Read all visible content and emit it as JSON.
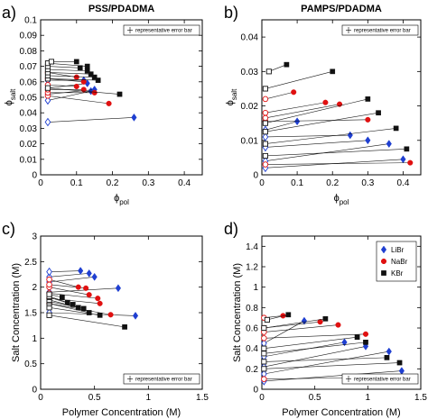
{
  "colors": {
    "LiBr": "#1f3fd1",
    "NaBr": "#e01010",
    "KBr": "#111111",
    "axis": "#000000",
    "tie_line": "#000000"
  },
  "figure": {
    "error_bar_note": "representative error bar",
    "legend_items": [
      "LiBr",
      "NaBr",
      "KBr"
    ]
  },
  "chart_data": [
    {
      "id": "a",
      "type": "scatter",
      "panel_label": "a)",
      "title": "PSS/PDADMA",
      "xlabel": "ϕ",
      "xlabel_sub": "pol",
      "ylabel": "ϕ",
      "ylabel_sub": "salt",
      "xlim": [
        0,
        0.45
      ],
      "ylim": [
        0,
        0.1
      ],
      "xticks": [
        0,
        0.1,
        0.2,
        0.3,
        0.4
      ],
      "xtick_labels": [
        "0",
        "0.1",
        "0.2",
        "0.3",
        "0.4"
      ],
      "yticks": [
        0,
        0.01,
        0.02,
        0.03,
        0.04,
        0.05,
        0.06,
        0.07,
        0.08,
        0.09,
        0.1
      ],
      "ytick_labels": [
        "0",
        "0.01",
        "0.02",
        "0.03",
        "0.04",
        "0.05",
        "0.06",
        "0.07",
        "0.08",
        "0.09",
        "0.1"
      ],
      "grid": false,
      "legend": "none",
      "error_bar_box": "top-right",
      "tie_lines": [
        {
          "salt": "LiBr",
          "x": [
            0.02,
            0.26
          ],
          "y": [
            0.034,
            0.037
          ]
        },
        {
          "salt": "LiBr",
          "x": [
            0.02,
            0.14
          ],
          "y": [
            0.048,
            0.054
          ]
        },
        {
          "salt": "LiBr",
          "x": [
            0.02,
            0.15
          ],
          "y": [
            0.052,
            0.055
          ]
        },
        {
          "salt": "LiBr",
          "x": [
            0.02,
            0.13
          ],
          "y": [
            0.056,
            0.059
          ]
        },
        {
          "salt": "LiBr",
          "x": [
            0.02,
            0.12
          ],
          "y": [
            0.061,
            0.061
          ]
        },
        {
          "salt": "NaBr",
          "x": [
            0.02,
            0.19
          ],
          "y": [
            0.051,
            0.046
          ]
        },
        {
          "salt": "NaBr",
          "x": [
            0.02,
            0.15
          ],
          "y": [
            0.053,
            0.053
          ]
        },
        {
          "salt": "NaBr",
          "x": [
            0.02,
            0.12
          ],
          "y": [
            0.055,
            0.055
          ]
        },
        {
          "salt": "NaBr",
          "x": [
            0.02,
            0.1
          ],
          "y": [
            0.058,
            0.057
          ]
        },
        {
          "salt": "NaBr",
          "x": [
            0.02,
            0.12
          ],
          "y": [
            0.062,
            0.06
          ]
        },
        {
          "salt": "NaBr",
          "x": [
            0.02,
            0.1
          ],
          "y": [
            0.066,
            0.063
          ]
        },
        {
          "salt": "KBr",
          "x": [
            0.02,
            0.22
          ],
          "y": [
            0.056,
            0.052
          ]
        },
        {
          "salt": "KBr",
          "x": [
            0.02,
            0.16
          ],
          "y": [
            0.062,
            0.061
          ]
        },
        {
          "salt": "KBr",
          "x": [
            0.02,
            0.15
          ],
          "y": [
            0.064,
            0.063
          ]
        },
        {
          "salt": "KBr",
          "x": [
            0.02,
            0.14
          ],
          "y": [
            0.066,
            0.065
          ]
        },
        {
          "salt": "KBr",
          "x": [
            0.02,
            0.13
          ],
          "y": [
            0.068,
            0.067
          ]
        },
        {
          "salt": "KBr",
          "x": [
            0.02,
            0.11
          ],
          "y": [
            0.07,
            0.069
          ]
        },
        {
          "salt": "KBr",
          "x": [
            0.02,
            0.13
          ],
          "y": [
            0.072,
            0.07
          ]
        },
        {
          "salt": "KBr",
          "x": [
            0.03,
            0.1
          ],
          "y": [
            0.073,
            0.073
          ]
        }
      ]
    },
    {
      "id": "b",
      "type": "scatter",
      "panel_label": "b)",
      "title": "PAMPS/PDADMA",
      "xlabel": "ϕ",
      "xlabel_sub": "pol",
      "ylabel": "ϕ",
      "ylabel_sub": "salt",
      "xlim": [
        0,
        0.45
      ],
      "ylim": [
        0,
        0.045
      ],
      "xticks": [
        0,
        0.1,
        0.2,
        0.3,
        0.4
      ],
      "xtick_labels": [
        "0",
        "0.1",
        "0.2",
        "0.3",
        "0.4"
      ],
      "yticks": [
        0,
        0.01,
        0.02,
        0.03,
        0.04
      ],
      "ytick_labels": [
        "0",
        "0.01",
        "0.02",
        "0.03",
        "0.04"
      ],
      "grid": false,
      "legend": "none",
      "error_bar_box": "top-right",
      "tie_lines": [
        {
          "salt": "LiBr",
          "x": [
            0.01,
            0.4
          ],
          "y": [
            0.002,
            0.0045
          ]
        },
        {
          "salt": "LiBr",
          "x": [
            0.01,
            0.36
          ],
          "y": [
            0.004,
            0.009
          ]
        },
        {
          "salt": "LiBr",
          "x": [
            0.01,
            0.3
          ],
          "y": [
            0.008,
            0.01
          ]
        },
        {
          "salt": "LiBr",
          "x": [
            0.01,
            0.25
          ],
          "y": [
            0.011,
            0.0115
          ]
        },
        {
          "salt": "LiBr",
          "x": [
            0.01,
            0.1
          ],
          "y": [
            0.013,
            0.0155
          ]
        },
        {
          "salt": "NaBr",
          "x": [
            0.01,
            0.42
          ],
          "y": [
            0.003,
            0.0035
          ]
        },
        {
          "salt": "NaBr",
          "x": [
            0.01,
            0.3
          ],
          "y": [
            0.0155,
            0.016
          ]
        },
        {
          "salt": "NaBr",
          "x": [
            0.01,
            0.22
          ],
          "y": [
            0.0165,
            0.0205
          ]
        },
        {
          "salt": "NaBr",
          "x": [
            0.01,
            0.18
          ],
          "y": [
            0.018,
            0.021
          ]
        },
        {
          "salt": "NaBr",
          "x": [
            0.01,
            0.09
          ],
          "y": [
            0.022,
            0.024
          ]
        },
        {
          "salt": "KBr",
          "x": [
            0.01,
            0.41
          ],
          "y": [
            0.0055,
            0.0075
          ]
        },
        {
          "salt": "KBr",
          "x": [
            0.01,
            0.38
          ],
          "y": [
            0.009,
            0.0135
          ]
        },
        {
          "salt": "KBr",
          "x": [
            0.01,
            0.33
          ],
          "y": [
            0.0125,
            0.018
          ]
        },
        {
          "salt": "KBr",
          "x": [
            0.01,
            0.3
          ],
          "y": [
            0.015,
            0.022
          ]
        },
        {
          "salt": "KBr",
          "x": [
            0.01,
            0.2
          ],
          "y": [
            0.025,
            0.03
          ]
        },
        {
          "salt": "KBr",
          "x": [
            0.02,
            0.07
          ],
          "y": [
            0.03,
            0.032
          ]
        }
      ]
    },
    {
      "id": "c",
      "type": "scatter",
      "panel_label": "c)",
      "title": "",
      "xlabel": "Polymer Concentration (M)",
      "ylabel": "Salt Concentration (M)",
      "xlim": [
        0,
        1.5
      ],
      "ylim": [
        0,
        3
      ],
      "xticks": [
        0,
        0.5,
        1,
        1.5
      ],
      "xtick_labels": [
        "0",
        "0.5",
        "1",
        "1.5"
      ],
      "yticks": [
        0,
        0.5,
        1,
        1.5,
        2,
        2.5,
        3
      ],
      "ytick_labels": [
        "0",
        "0.5",
        "1",
        "1.5",
        "2",
        "2.5",
        "3"
      ],
      "grid": false,
      "legend": "none",
      "error_bar_box": "bottom-right",
      "tie_lines": [
        {
          "salt": "LiBr",
          "x": [
            0.08,
            0.88
          ],
          "y": [
            1.5,
            1.44
          ]
        },
        {
          "salt": "LiBr",
          "x": [
            0.08,
            0.72
          ],
          "y": [
            1.9,
            1.98
          ]
        },
        {
          "salt": "LiBr",
          "x": [
            0.08,
            0.5
          ],
          "y": [
            2.1,
            2.2
          ]
        },
        {
          "salt": "LiBr",
          "x": [
            0.08,
            0.45
          ],
          "y": [
            2.2,
            2.27
          ]
        },
        {
          "salt": "LiBr",
          "x": [
            0.08,
            0.37
          ],
          "y": [
            2.3,
            2.32
          ]
        },
        {
          "salt": "NaBr",
          "x": [
            0.08,
            0.65
          ],
          "y": [
            1.68,
            1.46
          ]
        },
        {
          "salt": "NaBr",
          "x": [
            0.08,
            0.55
          ],
          "y": [
            1.78,
            1.68
          ]
        },
        {
          "salt": "NaBr",
          "x": [
            0.08,
            0.53
          ],
          "y": [
            1.88,
            1.78
          ]
        },
        {
          "salt": "NaBr",
          "x": [
            0.08,
            0.45
          ],
          "y": [
            2.0,
            1.85
          ]
        },
        {
          "salt": "NaBr",
          "x": [
            0.08,
            0.42
          ],
          "y": [
            2.05,
            1.98
          ]
        },
        {
          "salt": "NaBr",
          "x": [
            0.08,
            0.35
          ],
          "y": [
            2.15,
            2.0
          ]
        },
        {
          "salt": "KBr",
          "x": [
            0.08,
            0.78
          ],
          "y": [
            1.45,
            1.22
          ]
        },
        {
          "salt": "KBr",
          "x": [
            0.08,
            0.55
          ],
          "y": [
            1.6,
            1.45
          ]
        },
        {
          "salt": "KBr",
          "x": [
            0.08,
            0.45
          ],
          "y": [
            1.68,
            1.5
          ]
        },
        {
          "salt": "KBr",
          "x": [
            0.08,
            0.4
          ],
          "y": [
            1.72,
            1.58
          ]
        },
        {
          "salt": "KBr",
          "x": [
            0.08,
            0.35
          ],
          "y": [
            1.75,
            1.6
          ]
        },
        {
          "salt": "KBr",
          "x": [
            0.08,
            0.3
          ],
          "y": [
            1.8,
            1.66
          ]
        },
        {
          "salt": "KBr",
          "x": [
            0.08,
            0.25
          ],
          "y": [
            1.82,
            1.7
          ]
        },
        {
          "salt": "KBr",
          "x": [
            0.08,
            0.2
          ],
          "y": [
            1.86,
            1.8
          ]
        }
      ]
    },
    {
      "id": "d",
      "type": "scatter",
      "panel_label": "d)",
      "title": "",
      "xlabel": "Polymer Concentration (M)",
      "ylabel": "Salt Concentration (M)",
      "xlim": [
        0,
        1.5
      ],
      "ylim": [
        0,
        1.5
      ],
      "xticks": [
        0,
        0.5,
        1,
        1.5
      ],
      "xtick_labels": [
        "0",
        "0.5",
        "1",
        "1.5"
      ],
      "yticks": [
        0,
        0.2,
        0.4,
        0.6,
        0.8,
        1.0,
        1.2,
        1.4
      ],
      "ytick_labels": [
        "0",
        "0.2",
        "0.4",
        "0.6",
        "0.8",
        "1",
        "1.2",
        "1.4"
      ],
      "grid": false,
      "legend": "top-right",
      "error_bar_box": "bottom-right",
      "tie_lines": [
        {
          "salt": "LiBr",
          "x": [
            0.02,
            1.32
          ],
          "y": [
            0.08,
            0.18
          ]
        },
        {
          "salt": "LiBr",
          "x": [
            0.02,
            1.2
          ],
          "y": [
            0.15,
            0.37
          ]
        },
        {
          "salt": "LiBr",
          "x": [
            0.02,
            0.98
          ],
          "y": [
            0.22,
            0.42
          ]
        },
        {
          "salt": "LiBr",
          "x": [
            0.02,
            0.78
          ],
          "y": [
            0.32,
            0.46
          ]
        },
        {
          "salt": "LiBr",
          "x": [
            0.02,
            0.4
          ],
          "y": [
            0.45,
            0.67
          ]
        },
        {
          "salt": "NaBr",
          "x": [
            0.02,
            1.37
          ],
          "y": [
            0.1,
            0.12
          ]
        },
        {
          "salt": "NaBr",
          "x": [
            0.02,
            0.98
          ],
          "y": [
            0.5,
            0.54
          ]
        },
        {
          "salt": "NaBr",
          "x": [
            0.02,
            0.72
          ],
          "y": [
            0.56,
            0.63
          ]
        },
        {
          "salt": "NaBr",
          "x": [
            0.02,
            0.55
          ],
          "y": [
            0.6,
            0.66
          ]
        },
        {
          "salt": "NaBr",
          "x": [
            0.02,
            0.2
          ],
          "y": [
            0.7,
            0.72
          ]
        },
        {
          "salt": "KBr",
          "x": [
            0.02,
            1.3
          ],
          "y": [
            0.2,
            0.26
          ]
        },
        {
          "salt": "KBr",
          "x": [
            0.02,
            1.18
          ],
          "y": [
            0.27,
            0.31
          ]
        },
        {
          "salt": "KBr",
          "x": [
            0.02,
            0.98
          ],
          "y": [
            0.35,
            0.46
          ]
        },
        {
          "salt": "KBr",
          "x": [
            0.02,
            0.9
          ],
          "y": [
            0.4,
            0.51
          ]
        },
        {
          "salt": "KBr",
          "x": [
            0.02,
            0.6
          ],
          "y": [
            0.6,
            0.69
          ]
        },
        {
          "salt": "KBr",
          "x": [
            0.05,
            0.25
          ],
          "y": [
            0.68,
            0.73
          ]
        }
      ]
    }
  ]
}
